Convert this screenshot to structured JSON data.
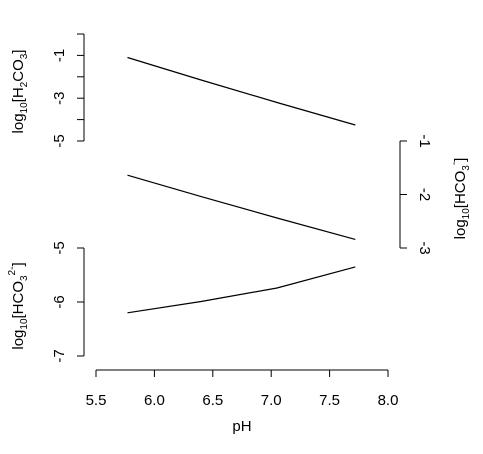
{
  "chart_data": {
    "type": "line",
    "title": "",
    "xlabel": "pH",
    "xlim": [
      5.5,
      8.0
    ],
    "x_ticks": [
      5.5,
      6.0,
      6.5,
      7.0,
      7.5,
      8.0
    ],
    "x_tick_labels": [
      "5.5",
      "6.0",
      "6.5",
      "7.0",
      "7.5",
      "8.0"
    ],
    "x": [
      5.77,
      6.4,
      7.05,
      7.72
    ],
    "panels": [
      {
        "id": "h2co3",
        "axis_side": "left",
        "ylabel": {
          "prefix": "log",
          "sub": "10",
          "open": "[H",
          "sub2": "2",
          "mid": "CO",
          "sub3": "3",
          "close": "]"
        },
        "ylim": [
          -5.0,
          0.0
        ],
        "y_ticks": [
          -1,
          -3,
          -5
        ],
        "y_tick_labels": [
          "-1",
          "-3",
          "-5"
        ],
        "y_minor_ticks": [
          0,
          -2,
          -4
        ],
        "values": [
          -1.1,
          -2.15,
          -3.2,
          -4.25
        ]
      },
      {
        "id": "hco3",
        "axis_side": "right",
        "ylabel": {
          "prefix": "log",
          "sub": "10",
          "open": "[HCO",
          "sub2": "3",
          "sup": "-",
          "close": "]"
        },
        "ylim": [
          -3.0,
          -1.0
        ],
        "y_ticks": [
          -1,
          -2,
          -3
        ],
        "y_tick_labels": [
          "-1",
          "-2",
          "-3"
        ],
        "values": [
          -1.64,
          -2.04,
          -2.44,
          -2.84
        ]
      },
      {
        "id": "co3",
        "axis_side": "left",
        "ylabel": {
          "prefix": "log",
          "sub": "10",
          "open": "[HCO",
          "sub2": "3",
          "sup": "2-",
          "close": "]"
        },
        "ylim": [
          -7.0,
          -5.0
        ],
        "y_ticks": [
          -5,
          -6,
          -7
        ],
        "y_tick_labels": [
          "-5",
          "-6",
          "-7"
        ],
        "values": [
          -6.2,
          -5.99,
          -5.74,
          -5.35
        ]
      }
    ]
  }
}
